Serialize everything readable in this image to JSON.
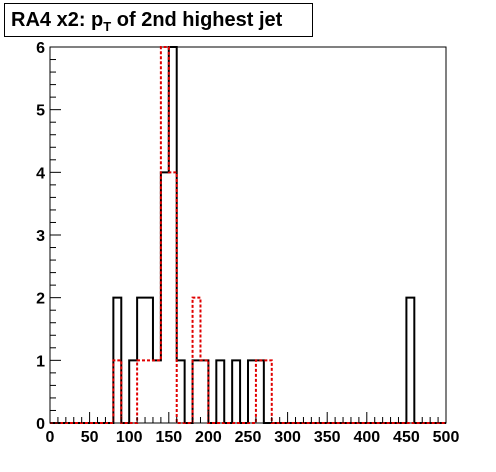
{
  "chart_data": {
    "type": "histogram",
    "title": {
      "prefix": "RA4 x2: p",
      "sub": "T",
      "suffix": " of 2nd highest jet"
    },
    "xlim": [
      0,
      500
    ],
    "ylim": [
      0,
      6
    ],
    "bin_width": 10,
    "x_ticks": [
      "0",
      "50",
      "100",
      "150",
      "200",
      "250",
      "300",
      "350",
      "400",
      "450",
      "500"
    ],
    "y_ticks": [
      "0",
      "1",
      "2",
      "3",
      "4",
      "5",
      "6"
    ],
    "series": [
      {
        "color": "#000000",
        "style": "solid",
        "values": [
          0,
          0,
          0,
          0,
          0,
          0,
          0,
          0,
          2,
          0,
          1,
          2,
          2,
          1,
          4,
          6,
          1,
          0,
          1,
          1,
          0,
          1,
          0,
          1,
          0,
          1,
          1,
          0,
          0,
          0,
          0,
          0,
          0,
          0,
          0,
          0,
          0,
          0,
          0,
          0,
          0,
          0,
          0,
          0,
          0,
          2,
          0,
          0,
          0,
          0
        ]
      },
      {
        "color": "#e00000",
        "style": "dashed",
        "values": [
          0,
          0,
          0,
          0,
          0,
          0,
          0,
          0,
          1,
          0,
          0,
          1,
          1,
          1,
          6,
          4,
          0,
          0,
          2,
          1,
          0,
          0,
          0,
          0,
          0,
          0,
          1,
          1,
          0,
          0,
          0,
          0,
          0,
          0,
          0,
          0,
          0,
          0,
          0,
          0,
          0,
          0,
          0,
          0,
          0,
          0,
          0,
          0,
          0,
          0
        ]
      }
    ]
  }
}
